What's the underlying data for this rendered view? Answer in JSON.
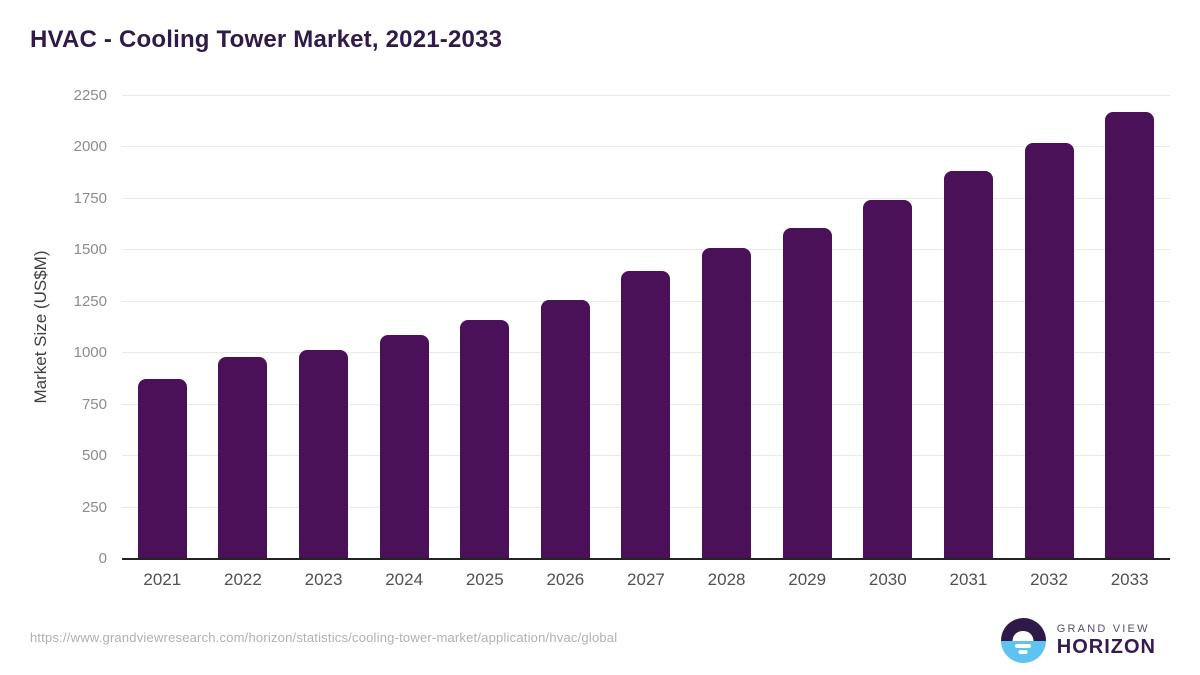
{
  "title": "HVAC - Cooling Tower Market, 2021-2033",
  "footer": {
    "source_url": "https://www.grandviewresearch.com/horizon/statistics/cooling-tower-market/application/hvac/global",
    "logo": {
      "line1": "GRAND VIEW",
      "line2": "HORIZON",
      "mark": "sun-over-horizon-icon"
    }
  },
  "colors": {
    "bar": "#4a1159",
    "title": "#301a47",
    "grid": "#e9e9e9",
    "axis_line": "#222222",
    "tick_label": "#8c8c8c",
    "x_label": "#515151",
    "y_axis_title": "#414141",
    "url": "#b0b0b0",
    "logo_dark": "#2e1a47",
    "logo_blue": "#5ec3f0",
    "logo_gray": "#564d6d",
    "logo_dark2": "#371a52"
  },
  "chart_data": {
    "type": "bar",
    "title": "HVAC - Cooling Tower Market, 2021-2033",
    "categories": [
      "2021",
      "2022",
      "2023",
      "2024",
      "2025",
      "2026",
      "2027",
      "2028",
      "2029",
      "2030",
      "2031",
      "2032",
      "2033"
    ],
    "values": [
      875,
      980,
      1015,
      1090,
      1160,
      1260,
      1400,
      1510,
      1610,
      1745,
      1885,
      2020,
      2170
    ],
    "xlabel": "",
    "ylabel": "Market Size (US$M)",
    "ylim": [
      0,
      2250
    ],
    "ytick_step": 250,
    "grid": "horizontal-only",
    "legend": "none",
    "bar_color": "#4a1159"
  }
}
